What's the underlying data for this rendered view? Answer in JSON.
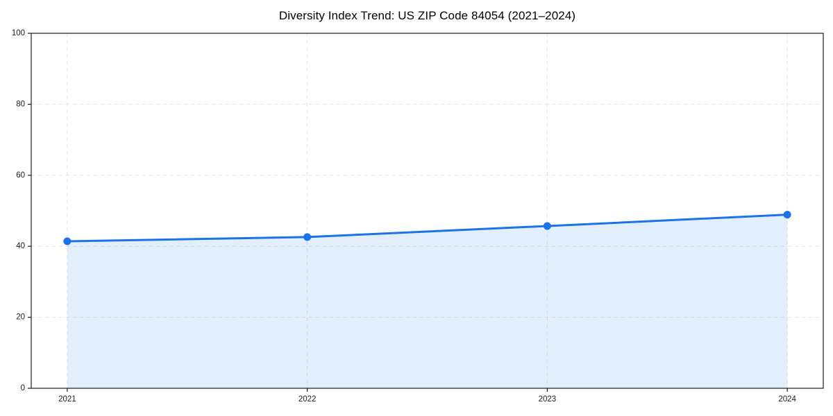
{
  "page": {
    "background": "#ffffff"
  },
  "chart_data": {
    "type": "area",
    "title": "Diversity Index Trend: US ZIP Code 84054 (2021–2024)",
    "xlabel": "",
    "ylabel": "",
    "x": [
      2021,
      2022,
      2023,
      2024
    ],
    "x_labels": [
      "2021",
      "2022",
      "2023",
      "2024"
    ],
    "series": [
      {
        "name": "Diversity Index",
        "values": [
          41.4,
          42.6,
          45.7,
          48.9
        ]
      }
    ],
    "xlim": [
      2020.85,
      2024.15
    ],
    "ylim": [
      0,
      100
    ],
    "y_ticks": [
      0,
      20,
      40,
      60,
      80,
      100
    ],
    "y_tick_labels": [
      "0",
      "20",
      "40",
      "60",
      "80",
      "100"
    ],
    "grid": true,
    "grid_style": "dashed",
    "legend": "none",
    "marker": "circle",
    "colors": {
      "line": "#1a73e8",
      "marker": "#1a73e8",
      "fill": "rgba(26,115,232,0.12)",
      "grid": "#e2e2e2",
      "spine": "#1a1a1a",
      "tick_label": "#1a1a1a",
      "title": "#000000"
    }
  }
}
